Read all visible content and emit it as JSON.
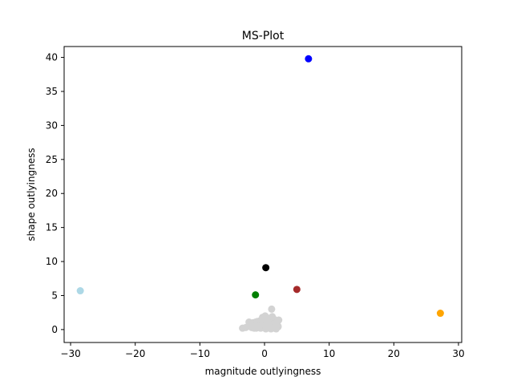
{
  "chart_data": {
    "type": "scatter",
    "title": "MS-Plot",
    "xlabel": "magnitude outlyingness",
    "ylabel": "shape outlyingness",
    "xlim": [
      -31,
      30.5
    ],
    "ylim": [
      -1.9,
      41.6
    ],
    "xticks": [
      -30,
      -20,
      -10,
      0,
      10,
      20,
      30
    ],
    "xtick_labels": [
      "−30",
      "−20",
      "−10",
      "0",
      "10",
      "20",
      "30"
    ],
    "yticks": [
      0,
      5,
      10,
      15,
      20,
      25,
      30,
      35,
      40
    ],
    "ytick_labels": [
      "0",
      "5",
      "10",
      "15",
      "20",
      "25",
      "30",
      "35",
      "40"
    ],
    "grid": false,
    "series": [
      {
        "color": "#d3d3d3",
        "x": [
          -3.4,
          -2.9,
          -2.5,
          -2.4,
          -2.1,
          -2.0,
          -1.8,
          -1.7,
          -1.5,
          -1.4,
          -1.3,
          -1.2,
          -1.1,
          -1.0,
          -0.9,
          -0.8,
          -0.7,
          -0.6,
          -0.5,
          -0.4,
          -0.3,
          -0.2,
          -0.1,
          0.0,
          0.1,
          0.2,
          0.3,
          0.4,
          0.5,
          0.6,
          0.7,
          0.8,
          0.9,
          1.0,
          1.1,
          1.2,
          1.3,
          1.4,
          1.5,
          1.6,
          1.7,
          1.8,
          1.9,
          2.0,
          2.1,
          2.2,
          -1.6,
          -0.7,
          0.2,
          0.8,
          1.5,
          2.1,
          -0.3,
          0.6,
          1.2,
          1.0,
          -2.2,
          0.4,
          1.8,
          -1.0
        ],
        "y": [
          0.2,
          0.3,
          0.5,
          1.1,
          0.8,
          0.3,
          1.0,
          0.4,
          0.6,
          1.1,
          0.2,
          0.7,
          1.2,
          0.3,
          0.9,
          0.5,
          1.3,
          0.2,
          0.8,
          1.1,
          0.4,
          1.6,
          0.3,
          0.9,
          2.0,
          0.5,
          1.2,
          0.3,
          1.7,
          0.6,
          1.0,
          0.2,
          1.4,
          0.7,
          3.0,
          0.4,
          1.1,
          0.3,
          1.5,
          0.6,
          1.0,
          0.3,
          0.8,
          1.2,
          0.4,
          1.4,
          0.2,
          0.6,
          0.1,
          0.9,
          0.2,
          0.5,
          1.8,
          1.5,
          1.9,
          0.1,
          0.6,
          0.8,
          0.1,
          0.5
        ]
      },
      {
        "color": "#0000ff",
        "x": [
          6.8
        ],
        "y": [
          39.8
        ]
      },
      {
        "color": "#000000",
        "x": [
          0.2
        ],
        "y": [
          9.1
        ]
      },
      {
        "color": "#a52a2a",
        "x": [
          5.0
        ],
        "y": [
          5.9
        ]
      },
      {
        "color": "#008000",
        "x": [
          -1.4
        ],
        "y": [
          5.1
        ]
      },
      {
        "color": "#add8e6",
        "x": [
          -28.5
        ],
        "y": [
          5.7
        ]
      },
      {
        "color": "#ffa500",
        "x": [
          27.2
        ],
        "y": [
          2.4
        ]
      }
    ]
  }
}
